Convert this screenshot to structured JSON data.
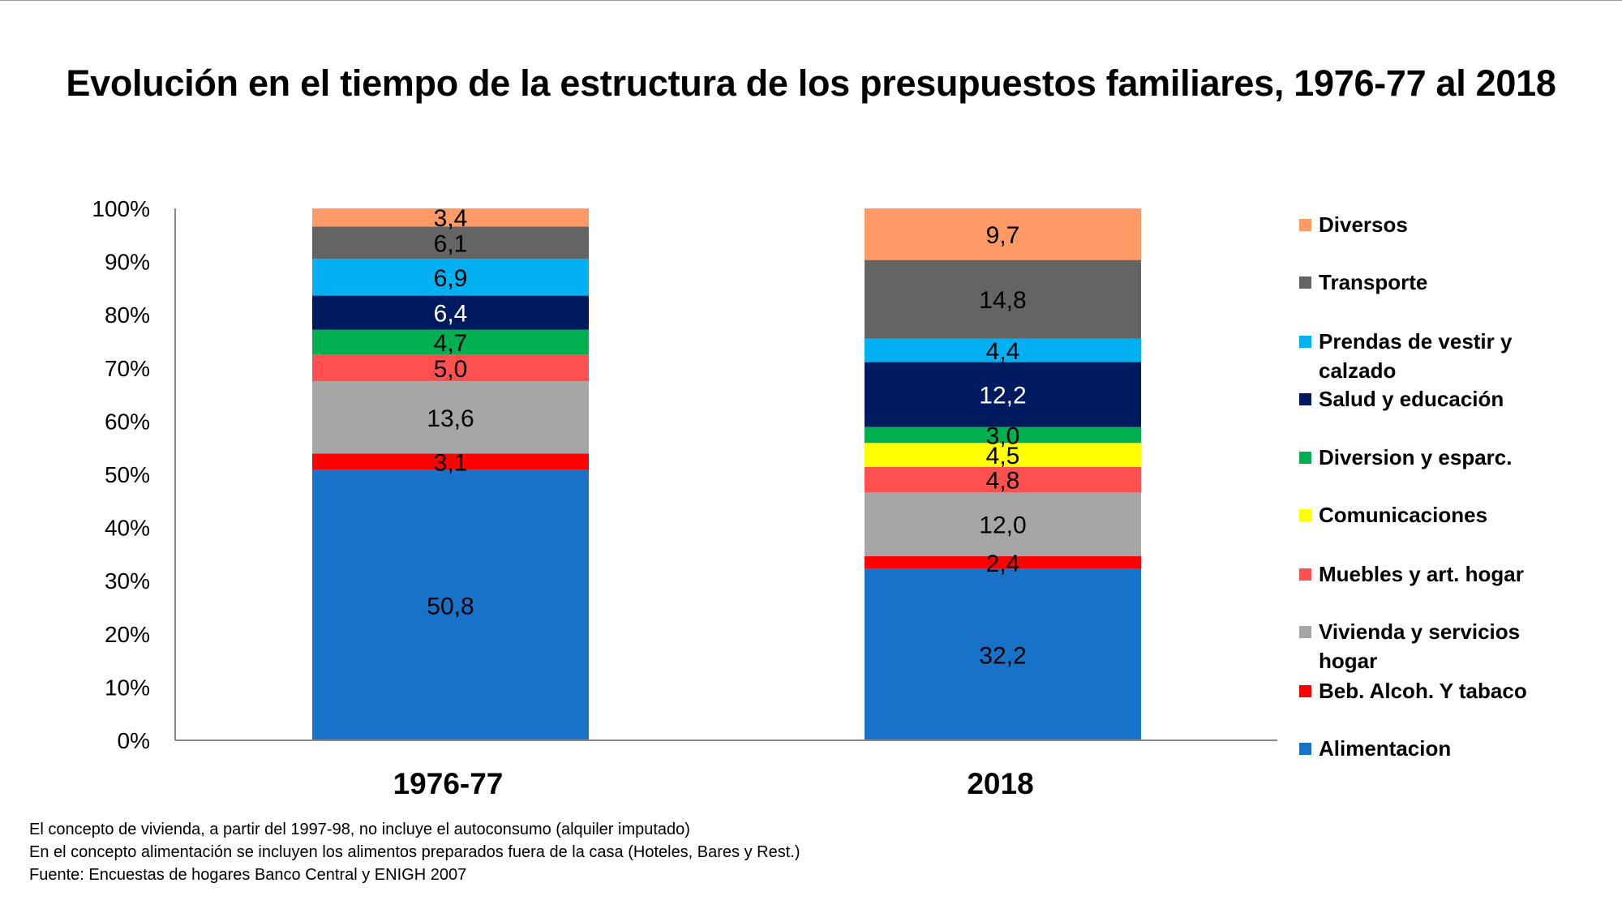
{
  "chart_data": {
    "type": "stacked-bar-100",
    "title": "Evolución en el tiempo de la estructura de los presupuestos familiares, 1976-77 al 2018",
    "categories": [
      "1976-77",
      "2018"
    ],
    "ylim": [
      0,
      100
    ],
    "yticks": [
      "0%",
      "10%",
      "20%",
      "30%",
      "40%",
      "50%",
      "60%",
      "70%",
      "80%",
      "90%",
      "100%"
    ],
    "grid": false,
    "legend_position": "right",
    "series": [
      {
        "name": "Alimentacion",
        "color": "#1873C8",
        "label_color": "#000000",
        "values": [
          50.8,
          32.2
        ],
        "labels": [
          "50,8",
          "32,2"
        ]
      },
      {
        "name": "Beb. Alcoh. Y tabaco",
        "color": "#FF0000",
        "label_color": "#000000",
        "values": [
          3.1,
          2.4
        ],
        "labels": [
          "3,1",
          "2,4"
        ]
      },
      {
        "name": "Vivienda y servicios hogar",
        "color": "#A6A6A6",
        "label_color": "#000000",
        "values": [
          13.6,
          12.0
        ],
        "labels": [
          "13,6",
          "12,0"
        ]
      },
      {
        "name": "Muebles y art. hogar",
        "color": "#FF5050",
        "label_color": "#000000",
        "values": [
          5.0,
          4.8
        ],
        "labels": [
          "5,0",
          "4,8"
        ]
      },
      {
        "name": "Comunicaciones",
        "color": "#FFFF00",
        "label_color": "#000000",
        "values": [
          0,
          4.5
        ],
        "labels": [
          "",
          "4,5"
        ]
      },
      {
        "name": "Diversion y esparc.",
        "color": "#00B050",
        "label_color": "#000000",
        "values": [
          4.7,
          3.0
        ],
        "labels": [
          "4,7",
          "3,0"
        ]
      },
      {
        "name": "Salud y educación",
        "color": "#001A60",
        "label_color": "#FFFFFF",
        "values": [
          6.4,
          12.2
        ],
        "labels": [
          "6,4",
          "12,2"
        ]
      },
      {
        "name": "Prendas de vestir y calzado",
        "color": "#00B0F0",
        "label_color": "#000000",
        "values": [
          6.9,
          4.4
        ],
        "labels": [
          "6,9",
          "4,4"
        ]
      },
      {
        "name": "Transporte",
        "color": "#646464",
        "label_color": "#000000",
        "values": [
          6.1,
          14.8
        ],
        "labels": [
          "6,1",
          "14,8"
        ]
      },
      {
        "name": "Diversos",
        "color": "#FF9966",
        "label_color": "#000000",
        "values": [
          3.4,
          9.7
        ],
        "labels": [
          "3,4",
          "9,7"
        ]
      }
    ]
  },
  "legend": [
    [
      "Diversos"
    ],
    [
      "Transporte"
    ],
    [
      "Prendas de vestir y",
      "calzado"
    ],
    [
      "Salud y educación"
    ],
    [
      "Diversion y esparc."
    ],
    [
      "Comunicaciones"
    ],
    [
      "Muebles y art. hogar"
    ],
    [
      "Vivienda y servicios",
      "hogar"
    ],
    [
      "Beb. Alcoh. Y tabaco"
    ],
    [
      "Alimentacion"
    ]
  ],
  "notes": [
    "El concepto de vivienda, a partir del 1997-98,  no incluye el autoconsumo (alquiler imputado)",
    "En el concepto alimentación se incluyen los alimentos preparados fuera de la casa (Hoteles, Bares  y Rest.)",
    "Fuente: Encuestas de hogares Banco Central y ENIGH 2007"
  ]
}
